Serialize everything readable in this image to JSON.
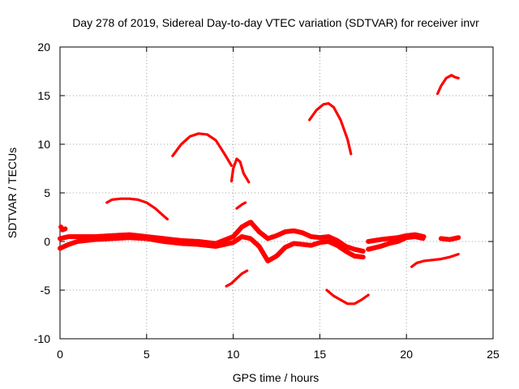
{
  "chart_data": {
    "type": "scatter",
    "title": "Day 278 of 2019, Sidereal Day-to-day VTEC variation (SDTVAR) for receiver invr",
    "xlabel": "GPS time / hours",
    "ylabel": "SDTVAR / TECUs",
    "xlim": [
      0,
      25
    ],
    "ylim": [
      -10,
      20
    ],
    "xticks": [
      "0",
      "5",
      "10",
      "15",
      "20",
      "25"
    ],
    "yticks": [
      "-10",
      "-5",
      "0",
      "5",
      "10",
      "15",
      "20"
    ],
    "grid": true,
    "marker_color": "#ff0000",
    "series": [
      {
        "name": "baseline-band-upper",
        "fuzzy": true,
        "x": [
          0.0,
          0.5,
          1.0,
          2.0,
          3.0,
          4.0,
          5.0,
          6.0,
          7.0,
          8.0,
          9.0,
          10.0,
          10.5,
          11.0,
          11.5,
          12.0,
          12.5,
          13.0,
          13.5,
          14.0,
          14.5,
          15.0,
          15.5,
          16.0,
          16.5,
          17.0,
          17.5
        ],
        "y": [
          0.3,
          0.5,
          0.5,
          0.5,
          0.6,
          0.7,
          0.5,
          0.3,
          0.1,
          0.0,
          -0.2,
          0.5,
          1.5,
          2.0,
          1.0,
          0.3,
          0.6,
          1.0,
          1.1,
          0.9,
          0.5,
          0.4,
          0.5,
          0.1,
          -0.5,
          -0.8,
          -1.0
        ]
      },
      {
        "name": "baseline-band-lower",
        "fuzzy": true,
        "x": [
          0.0,
          0.5,
          1.0,
          2.0,
          3.0,
          4.0,
          5.0,
          6.0,
          7.0,
          8.0,
          9.0,
          10.0,
          10.5,
          11.0,
          11.5,
          12.0,
          12.5,
          13.0,
          13.5,
          14.0,
          14.5,
          15.0,
          15.5,
          16.0,
          16.5,
          17.0,
          17.5
        ],
        "y": [
          -0.7,
          -0.3,
          0.0,
          0.2,
          0.3,
          0.4,
          0.3,
          0.0,
          -0.2,
          -0.3,
          -0.5,
          -0.1,
          0.5,
          0.3,
          -0.5,
          -2.0,
          -1.5,
          -0.6,
          -0.2,
          -0.3,
          -0.4,
          -0.1,
          0.0,
          -0.4,
          -1.0,
          -1.5,
          -1.6
        ]
      },
      {
        "name": "early-spike",
        "fuzzy": true,
        "x": [
          0.05,
          0.15,
          0.3
        ],
        "y": [
          1.5,
          1.2,
          1.3
        ]
      },
      {
        "name": "late-band-upper",
        "fuzzy": true,
        "x": [
          17.8,
          18.5,
          19.0,
          19.5,
          20.0,
          20.5,
          21.0
        ],
        "y": [
          0.0,
          0.2,
          0.3,
          0.4,
          0.6,
          0.7,
          0.5
        ]
      },
      {
        "name": "late-band-lower",
        "fuzzy": true,
        "x": [
          17.8,
          18.5,
          19.0,
          19.5,
          20.0,
          20.5,
          21.0
        ],
        "y": [
          -0.8,
          -0.5,
          -0.2,
          0.0,
          0.4,
          0.5,
          0.3
        ]
      },
      {
        "name": "late-fragment",
        "fuzzy": true,
        "x": [
          22.0,
          22.5,
          23.0
        ],
        "y": [
          0.3,
          0.2,
          0.4
        ]
      },
      {
        "name": "arc-a",
        "x": [
          2.7,
          3.0,
          3.5,
          4.0,
          4.5,
          5.0,
          5.5,
          6.0,
          6.2
        ],
        "y": [
          4.0,
          4.3,
          4.4,
          4.4,
          4.3,
          4.0,
          3.4,
          2.6,
          2.3
        ]
      },
      {
        "name": "arc-b",
        "x": [
          6.5,
          7.0,
          7.5,
          8.0,
          8.5,
          9.0,
          9.5,
          9.9
        ],
        "y": [
          8.8,
          10.0,
          10.8,
          11.1,
          11.0,
          10.4,
          9.0,
          7.8
        ]
      },
      {
        "name": "arc-c",
        "x": [
          9.9,
          10.0,
          10.2,
          10.4,
          10.6,
          10.8,
          10.9
        ],
        "y": [
          6.2,
          7.5,
          8.5,
          8.2,
          7.0,
          6.4,
          6.1
        ]
      },
      {
        "name": "fragment-d",
        "x": [
          10.2,
          10.5,
          10.7
        ],
        "y": [
          3.4,
          3.8,
          4.0
        ]
      },
      {
        "name": "arc-e",
        "x": [
          14.4,
          14.8,
          15.2,
          15.5,
          15.8,
          16.2,
          16.6,
          16.8
        ],
        "y": [
          12.5,
          13.5,
          14.1,
          14.2,
          13.8,
          12.5,
          10.5,
          9.0
        ]
      },
      {
        "name": "arc-f",
        "x": [
          21.8,
          22.0,
          22.3,
          22.6,
          22.8,
          23.0
        ],
        "y": [
          15.2,
          16.0,
          16.8,
          17.1,
          16.9,
          16.8
        ]
      },
      {
        "name": "arc-g",
        "x": [
          9.6,
          9.9,
          10.2,
          10.5,
          10.8
        ],
        "y": [
          -4.6,
          -4.3,
          -3.8,
          -3.3,
          -3.0
        ]
      },
      {
        "name": "arc-h",
        "x": [
          15.4,
          15.8,
          16.2,
          16.6,
          17.0,
          17.4,
          17.8
        ],
        "y": [
          -5.0,
          -5.6,
          -6.0,
          -6.4,
          -6.4,
          -6.0,
          -5.5
        ]
      },
      {
        "name": "arc-i",
        "x": [
          20.3,
          20.6,
          21.0,
          21.5,
          22.0,
          22.5,
          23.0
        ],
        "y": [
          -2.6,
          -2.2,
          -2.0,
          -1.9,
          -1.8,
          -1.6,
          -1.3
        ]
      }
    ]
  }
}
